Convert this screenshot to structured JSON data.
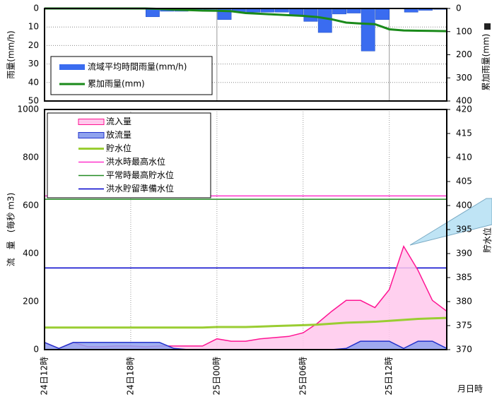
{
  "chart_data": [
    {
      "type": "bar",
      "y_label": "雨量(mm/h)",
      "y2_label": "累加雨量(mm)",
      "x": [
        0,
        1,
        2,
        3,
        4,
        5,
        6,
        7,
        8,
        9,
        10,
        11,
        12,
        13,
        14,
        15,
        16,
        17,
        18,
        19,
        20,
        21,
        22,
        23,
        24,
        25,
        26,
        27,
        28
      ],
      "xlim": [
        0,
        28
      ],
      "xticks": [
        12,
        24
      ],
      "ylim": [
        0,
        50
      ],
      "yticks": [
        0,
        10,
        20,
        30,
        40,
        50
      ],
      "y2lim": [
        0,
        400
      ],
      "y2ticks": [
        0,
        100,
        200,
        300,
        400
      ],
      "y_inverted": true,
      "ygrid": true,
      "xgrid": true,
      "series": [
        {
          "name": "流域平均時間雨量(mm/h)",
          "type": "bar",
          "color": "#3a6cf0",
          "values": [
            0,
            0,
            0,
            0,
            0,
            0,
            0,
            0,
            4.5,
            1.5,
            1.5,
            1,
            0.5,
            6,
            2,
            2,
            2,
            2,
            3.5,
            7,
            13,
            3,
            2.5,
            23,
            6,
            0,
            2,
            1,
            0.5
          ]
        },
        {
          "name": "累加雨量(mm)",
          "type": "line",
          "axis": "y2",
          "color": "#1a8a1a",
          "values": [
            0,
            0,
            0,
            0,
            0,
            0,
            0,
            0,
            2,
            5,
            7,
            9,
            10,
            12,
            20,
            23,
            26,
            29,
            32,
            37,
            47,
            61,
            65,
            68,
            90,
            95,
            96,
            97,
            98
          ]
        }
      ]
    },
    {
      "type": "area",
      "y_label": "流　量　(毎秒 m3)",
      "y2_label": "貯水位",
      "x_label": "月日時",
      "x": [
        0,
        1,
        2,
        3,
        4,
        5,
        6,
        7,
        8,
        9,
        10,
        11,
        12,
        13,
        14,
        15,
        16,
        17,
        18,
        19,
        20,
        21,
        22,
        23,
        24,
        25,
        26,
        27,
        28
      ],
      "xlim": [
        0,
        28
      ],
      "xticks": [
        {
          "value": 0,
          "label": "24日12時"
        },
        {
          "value": 6,
          "label": "24日18時"
        },
        {
          "value": 12,
          "label": "25日00時"
        },
        {
          "value": 18,
          "label": "25日06時"
        },
        {
          "value": 24,
          "label": "25日12時"
        }
      ],
      "ylim": [
        0,
        1000
      ],
      "yticks": [
        0,
        200,
        400,
        600,
        800,
        1000
      ],
      "y2lim": [
        370,
        420
      ],
      "y2ticks": [
        370,
        375,
        380,
        385,
        390,
        395,
        400,
        405,
        410,
        415,
        420
      ],
      "y_inverted": false,
      "ygrid": false,
      "xgrid": true,
      "series": [
        {
          "name": "流入量",
          "type": "area",
          "color": "#ff1493",
          "fill": "#ffc8ec",
          "values": [
            30,
            5,
            30,
            12,
            12,
            15,
            15,
            12,
            15,
            15,
            15,
            15,
            45,
            35,
            35,
            45,
            50,
            55,
            70,
            110,
            160,
            205,
            205,
            175,
            250,
            430,
            330,
            205,
            160
          ]
        },
        {
          "name": "放流量",
          "type": "area",
          "color": "#2233cc",
          "fill": "#8fa2ee",
          "values": [
            30,
            5,
            30,
            30,
            30,
            30,
            30,
            30,
            30,
            5,
            0,
            0,
            0,
            0,
            0,
            0,
            0,
            0,
            0,
            0,
            0,
            5,
            35,
            35,
            35,
            5,
            35,
            35,
            5
          ]
        },
        {
          "name": "貯水位",
          "type": "line",
          "axis": "y2",
          "color": "#9acd32",
          "values": [
            374.6,
            374.6,
            374.6,
            374.6,
            374.6,
            374.6,
            374.6,
            374.6,
            374.6,
            374.6,
            374.6,
            374.6,
            374.7,
            374.7,
            374.7,
            374.8,
            374.9,
            375.0,
            375.1,
            375.2,
            375.4,
            375.6,
            375.7,
            375.8,
            376.0,
            376.2,
            376.4,
            376.5,
            376.6
          ]
        }
      ],
      "reference_lines": [
        {
          "name": "洪水時最高水位",
          "color": "#ff33cc",
          "value": 402,
          "axis": "y2"
        },
        {
          "name": "平常時最高貯水位",
          "color": "#228b22",
          "value": 401.3,
          "axis": "y2"
        },
        {
          "name": "洪水貯留準備水位",
          "color": "#0000cc",
          "value": 387,
          "axis": "y2"
        }
      ]
    }
  ]
}
